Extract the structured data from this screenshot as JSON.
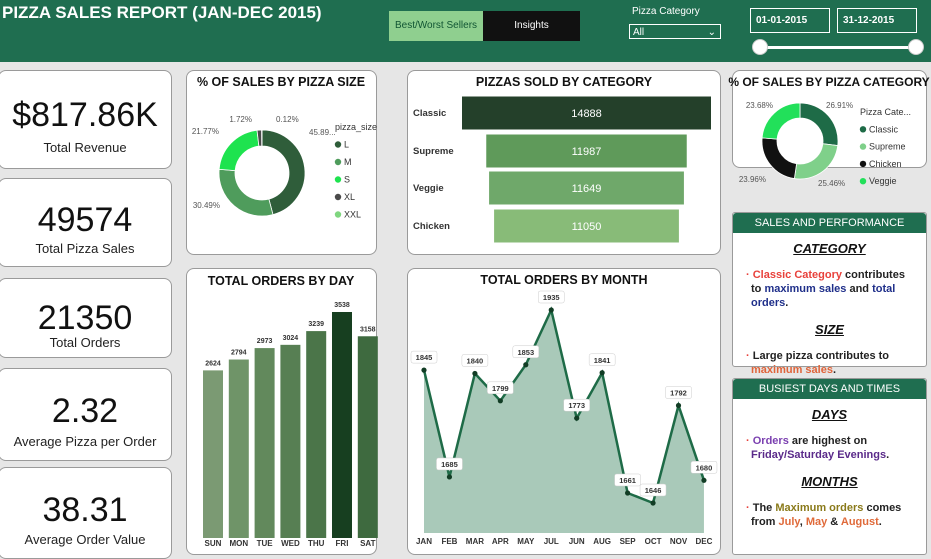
{
  "header": {
    "title": "PIZZA SALES REPORT (JAN-DEC 2015)",
    "tabs": [
      "Best/Worst Sellers",
      "Insights"
    ],
    "filter_label": "Pizza Category",
    "filter_value": "All",
    "date_range": [
      "01-01-2015",
      "31-12-2015"
    ]
  },
  "kpis": [
    {
      "value": "$817.86K",
      "label": "Total Revenue"
    },
    {
      "value": "49574",
      "label": "Total Pizza Sales"
    },
    {
      "value": "21350",
      "label": "Total Orders"
    },
    {
      "value": "2.32",
      "label": "Average Pizza per Order"
    },
    {
      "value": "38.31",
      "label": "Average Order Value"
    }
  ],
  "chart_data": [
    {
      "type": "pie",
      "donut": true,
      "title": "% OF SALES BY PIZZA SIZE",
      "legend_title": "pizza_size",
      "legend": "right",
      "categories": [
        "L",
        "M",
        "S",
        "XL",
        "XXL"
      ],
      "values": [
        45.89,
        30.49,
        21.77,
        1.72,
        0.12
      ],
      "value_labels": [
        "45.89...",
        "30.49%",
        "21.77%",
        "1.72%",
        "0.12%"
      ],
      "colors": [
        "#2f5d3a",
        "#4f9c5c",
        "#1ee34f",
        "#4a4a4a",
        "#7fd67f"
      ]
    },
    {
      "type": "funnel",
      "title": "PIZZAS SOLD BY CATEGORY",
      "categories": [
        "Classic",
        "Supreme",
        "Veggie",
        "Chicken"
      ],
      "values": [
        14888,
        11987,
        11649,
        11050
      ],
      "colors": [
        "#24402a",
        "#5f9a5a",
        "#6fa86a",
        "#88bb78"
      ]
    },
    {
      "type": "pie",
      "donut": true,
      "title": "% OF SALES BY PIZZA CATEGORY",
      "legend_title": "Pizza Cate...",
      "legend": "right",
      "categories": [
        "Classic",
        "Supreme",
        "Chicken",
        "Veggie"
      ],
      "values": [
        26.91,
        25.46,
        23.96,
        23.68
      ],
      "value_labels": [
        "26.91%",
        "25.46%",
        "23.96%",
        "23.68%"
      ],
      "colors": [
        "#1e6b47",
        "#7fd08a",
        "#111111",
        "#22e05a"
      ]
    },
    {
      "type": "bar",
      "title": "TOTAL ORDERS BY DAY",
      "categories": [
        "SUN",
        "MON",
        "TUE",
        "WED",
        "THU",
        "FRI",
        "SAT"
      ],
      "values": [
        2624,
        2794,
        2973,
        3024,
        3239,
        3538,
        3158
      ],
      "colors": [
        "#7b9a73",
        "#6f9468",
        "#62895c",
        "#577f53",
        "#4b7549",
        "#173f20",
        "#3e6a3f"
      ]
    },
    {
      "type": "area",
      "title": "TOTAL ORDERS BY MONTH",
      "categories": [
        "JAN",
        "FEB",
        "MAR",
        "APR",
        "MAY",
        "JUL",
        "JUN",
        "AUG",
        "SEP",
        "OCT",
        "NOV",
        "DEC"
      ],
      "values": [
        1845,
        1685,
        1840,
        1799,
        1853,
        1935,
        1773,
        1841,
        1661,
        1646,
        1792,
        1680
      ],
      "color": "#1e6b47",
      "fill": "#a9c9b9"
    }
  ],
  "panels": [
    {
      "title": "SALES AND PERFORMANCE",
      "sections": [
        {
          "heading": "CATEGORY",
          "segments": [
            {
              "text": "Classic Category",
              "color": "#e8413b"
            },
            {
              "text": " contributes to ",
              "color": "#222222"
            },
            {
              "text": "maximum sales",
              "color": "#1f2f8a"
            },
            {
              "text": " and ",
              "color": "#222222"
            },
            {
              "text": "total orders",
              "color": "#1f2f8a"
            },
            {
              "text": ".",
              "color": "#222222"
            }
          ]
        },
        {
          "heading": "SIZE",
          "segments": [
            {
              "text": "Large pizza contributes to ",
              "color": "#222222"
            },
            {
              "text": "maximum sales",
              "color": "#e0643a"
            },
            {
              "text": ".",
              "color": "#222222"
            }
          ]
        }
      ]
    },
    {
      "title": "BUSIEST DAYS AND TIMES",
      "sections": [
        {
          "heading": "DAYS",
          "segments": [
            {
              "text": "Orders",
              "color": "#7a3fb0"
            },
            {
              "text": " are highest on ",
              "color": "#222222"
            },
            {
              "text": "Friday/Saturday Evenings",
              "color": "#5a2a8a"
            },
            {
              "text": ".",
              "color": "#222222"
            }
          ]
        },
        {
          "heading": "MONTHS",
          "segments": [
            {
              "text": "The ",
              "color": "#222222"
            },
            {
              "text": "Maximum orders",
              "color": "#8a7a1a"
            },
            {
              "text": " comes from ",
              "color": "#222222"
            },
            {
              "text": "July",
              "color": "#e06a3a"
            },
            {
              "text": ", ",
              "color": "#222222"
            },
            {
              "text": "May",
              "color": "#e06a3a"
            },
            {
              "text": " & ",
              "color": "#222222"
            },
            {
              "text": "August",
              "color": "#e06a3a"
            },
            {
              "text": ".",
              "color": "#222222"
            }
          ]
        }
      ]
    }
  ]
}
